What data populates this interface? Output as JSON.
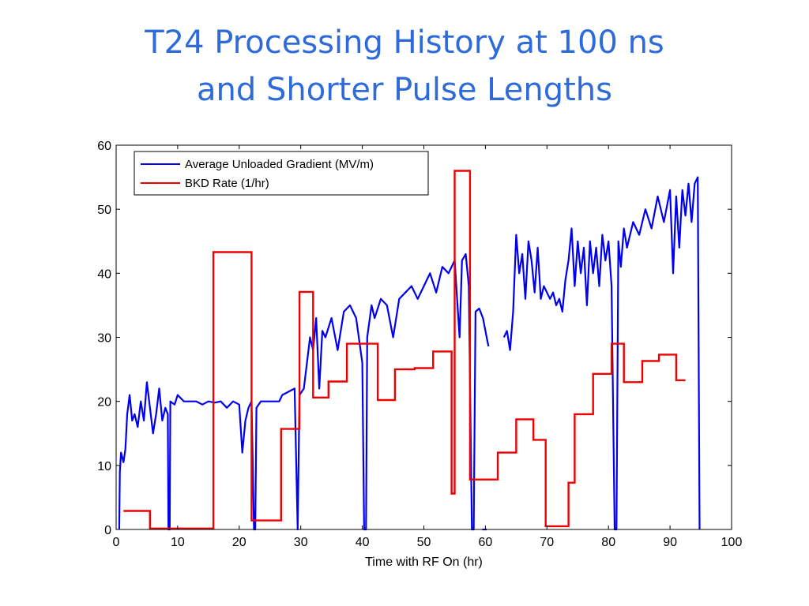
{
  "slide": {
    "title_line1": "T24 Processing History at 100 ns",
    "title_line2": "and Shorter Pulse Lengths"
  },
  "chart_data": {
    "type": "line",
    "xlabel": "Time with RF On (hr)",
    "ylabel": "",
    "xlim": [
      0,
      100
    ],
    "ylim": [
      0,
      60
    ],
    "xticks": [
      0,
      10,
      20,
      30,
      40,
      50,
      60,
      70,
      80,
      90,
      100
    ],
    "yticks": [
      0,
      10,
      20,
      30,
      40,
      50,
      60
    ],
    "grid": false,
    "legend_position": "top-left",
    "series": [
      {
        "name": "Average Unloaded Gradient (MV/m)",
        "color": "#0000ee",
        "style": "noisy-line",
        "segments": [
          [
            [
              0.5,
              0
            ],
            [
              0.6,
              9
            ],
            [
              0.8,
              12
            ],
            [
              1.2,
              10.5
            ],
            [
              1.5,
              12.5
            ],
            [
              1.8,
              18
            ],
            [
              2.2,
              21
            ],
            [
              2.6,
              17
            ],
            [
              3,
              18
            ],
            [
              3.5,
              16
            ],
            [
              4,
              20
            ],
            [
              4.5,
              17
            ],
            [
              5,
              23
            ],
            [
              5.5,
              19
            ],
            [
              6,
              15
            ],
            [
              6.5,
              18
            ],
            [
              7,
              22
            ],
            [
              7.5,
              17
            ],
            [
              8,
              19
            ],
            [
              8.4,
              18
            ],
            [
              8.5,
              0
            ],
            [
              8.7,
              0
            ],
            [
              8.8,
              20
            ],
            [
              9.5,
              19.5
            ],
            [
              10,
              21
            ],
            [
              11,
              20
            ],
            [
              12,
              20
            ],
            [
              13,
              20
            ],
            [
              14,
              19.5
            ],
            [
              15,
              20
            ],
            [
              16,
              19.8
            ],
            [
              17,
              20
            ],
            [
              18,
              19
            ],
            [
              19,
              20
            ],
            [
              20,
              19.5
            ],
            [
              20.5,
              12
            ],
            [
              21,
              17
            ],
            [
              21.5,
              19
            ],
            [
              22,
              20
            ],
            [
              22.4,
              0
            ],
            [
              22.6,
              0
            ],
            [
              22.8,
              19
            ],
            [
              23.5,
              20
            ],
            [
              24.5,
              20
            ],
            [
              25.5,
              20
            ],
            [
              26.5,
              20
            ],
            [
              27,
              21
            ],
            [
              28,
              21.5
            ],
            [
              29,
              22
            ],
            [
              29.5,
              0
            ],
            [
              29.8,
              21
            ],
            [
              30.5,
              22
            ],
            [
              31,
              26
            ],
            [
              31.5,
              30
            ],
            [
              32,
              28
            ],
            [
              32.5,
              33
            ],
            [
              33,
              22
            ],
            [
              33.5,
              31
            ],
            [
              34,
              30
            ],
            [
              35,
              33
            ],
            [
              36,
              28
            ],
            [
              37,
              34
            ],
            [
              38,
              35
            ],
            [
              39,
              33
            ],
            [
              40,
              26
            ],
            [
              40.3,
              0
            ],
            [
              40.6,
              0
            ],
            [
              40.8,
              30
            ],
            [
              41.5,
              35
            ],
            [
              42,
              33
            ],
            [
              43,
              36
            ],
            [
              44,
              35
            ],
            [
              45,
              30
            ],
            [
              46,
              36
            ],
            [
              47,
              37
            ],
            [
              48,
              38
            ],
            [
              49,
              36
            ],
            [
              50,
              38
            ],
            [
              51,
              40
            ],
            [
              52,
              37
            ],
            [
              53,
              41
            ],
            [
              54,
              40
            ],
            [
              55,
              42
            ],
            [
              55.8,
              30
            ],
            [
              56.2,
              42
            ],
            [
              56.8,
              43
            ],
            [
              57.3,
              38
            ],
            [
              57.8,
              0
            ],
            [
              58.1,
              0
            ],
            [
              58.4,
              34
            ],
            [
              59,
              34.5
            ],
            [
              59.6,
              33
            ],
            [
              60.2,
              30
            ],
            [
              60.5,
              28.6
            ]
          ],
          [
            [
              59.5,
              0
            ],
            [
              60.2,
              0
            ]
          ],
          [
            [
              63,
              30
            ],
            [
              63.5,
              31
            ],
            [
              64,
              28
            ],
            [
              64.5,
              34
            ],
            [
              65,
              46
            ],
            [
              65.5,
              40
            ],
            [
              66,
              43
            ],
            [
              66.5,
              36
            ],
            [
              67,
              45
            ],
            [
              67.5,
              42
            ],
            [
              68,
              37
            ],
            [
              68.5,
              44
            ],
            [
              69,
              36
            ],
            [
              69.5,
              38
            ],
            [
              70,
              37
            ],
            [
              70.5,
              36
            ],
            [
              71,
              37
            ],
            [
              71.5,
              35
            ],
            [
              72,
              36
            ],
            [
              72.5,
              34
            ],
            [
              73,
              39
            ],
            [
              73.5,
              42
            ],
            [
              74,
              47
            ],
            [
              74.5,
              38
            ],
            [
              75,
              45
            ],
            [
              75.5,
              40
            ],
            [
              76,
              44
            ],
            [
              76.5,
              35
            ],
            [
              77,
              45
            ],
            [
              77.5,
              40
            ],
            [
              78,
              44
            ],
            [
              78.5,
              38
            ],
            [
              79,
              46
            ],
            [
              79.5,
              42
            ],
            [
              80,
              45
            ],
            [
              80.5,
              38
            ],
            [
              81,
              0
            ],
            [
              81.3,
              0
            ],
            [
              81.6,
              45
            ],
            [
              82,
              41
            ],
            [
              82.5,
              47
            ],
            [
              83,
              44
            ],
            [
              84,
              48
            ],
            [
              85,
              46
            ],
            [
              86,
              50
            ],
            [
              87,
              47
            ],
            [
              88,
              52
            ],
            [
              89,
              48
            ],
            [
              90,
              53
            ],
            [
              90.5,
              40
            ],
            [
              91,
              52
            ],
            [
              91.5,
              44
            ],
            [
              92,
              53
            ],
            [
              92.5,
              49
            ],
            [
              93,
              54
            ],
            [
              93.5,
              48
            ],
            [
              94,
              54
            ],
            [
              94.5,
              55
            ],
            [
              94.8,
              0
            ]
          ]
        ]
      },
      {
        "name": "BKD Rate (1/hr)",
        "color": "#ee0000",
        "style": "step",
        "points": [
          [
            1.2,
            2.9
          ],
          [
            5.5,
            2.9
          ],
          [
            5.5,
            0.15
          ],
          [
            15.8,
            0.15
          ],
          [
            15.8,
            43.3
          ],
          [
            22,
            43.3
          ],
          [
            22,
            1.4
          ],
          [
            26.8,
            1.4
          ],
          [
            26.8,
            15.7
          ],
          [
            29.8,
            15.7
          ],
          [
            29.8,
            37.1
          ],
          [
            32,
            37.1
          ],
          [
            32,
            20.6
          ],
          [
            34.5,
            20.6
          ],
          [
            34.5,
            23.1
          ],
          [
            37.5,
            23.1
          ],
          [
            37.5,
            29
          ],
          [
            42.5,
            29
          ],
          [
            42.5,
            20.2
          ],
          [
            45.3,
            20.2
          ],
          [
            45.3,
            25
          ],
          [
            48.5,
            25
          ],
          [
            48.5,
            25.2
          ],
          [
            51.5,
            25.2
          ],
          [
            51.5,
            27.8
          ],
          [
            54.5,
            27.8
          ],
          [
            54.5,
            5.6
          ],
          [
            55,
            5.6
          ],
          [
            55,
            56
          ],
          [
            57.5,
            56
          ],
          [
            57.5,
            7.8
          ],
          [
            62,
            7.8
          ],
          [
            62,
            12
          ],
          [
            65,
            12
          ],
          [
            65,
            17.2
          ],
          [
            67.8,
            17.2
          ],
          [
            67.8,
            14
          ],
          [
            69.8,
            14
          ],
          [
            69.8,
            0.5
          ],
          [
            73.5,
            0.5
          ],
          [
            73.5,
            7.3
          ],
          [
            74.5,
            7.3
          ],
          [
            74.5,
            18
          ],
          [
            77.5,
            18
          ],
          [
            77.5,
            24.3
          ],
          [
            80.5,
            24.3
          ],
          [
            80.5,
            29
          ],
          [
            82.5,
            29
          ],
          [
            82.5,
            23
          ],
          [
            85.5,
            23
          ],
          [
            85.5,
            26.3
          ],
          [
            88.2,
            26.3
          ],
          [
            88.2,
            27.3
          ],
          [
            91,
            27.3
          ],
          [
            91,
            23.3
          ],
          [
            92.5,
            23.3
          ]
        ]
      }
    ]
  }
}
